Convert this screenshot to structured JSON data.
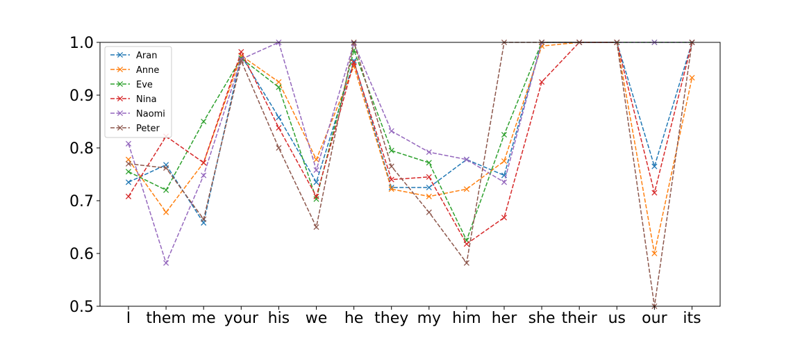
{
  "chart_data": {
    "type": "line",
    "title": "",
    "xlabel": "",
    "ylabel": "",
    "categories": [
      "I",
      "them",
      "me",
      "your",
      "his",
      "we",
      "he",
      "they",
      "my",
      "him",
      "her",
      "she",
      "their",
      "us",
      "our",
      "its"
    ],
    "ylim": [
      0.5,
      1.0
    ],
    "yticks": [
      "0.5",
      "0.6",
      "0.7",
      "0.8",
      "0.9",
      "1.0"
    ],
    "grid": false,
    "legend_position": "top-left",
    "marker": "x",
    "line_style": "dashed",
    "series": [
      {
        "name": "Aran",
        "color": "#1f77b4",
        "values": [
          0.735,
          0.768,
          0.658,
          0.975,
          0.858,
          0.735,
          0.965,
          0.725,
          0.725,
          0.778,
          0.748,
          1.0,
          1.0,
          1.0,
          0.765,
          1.0
        ]
      },
      {
        "name": "Anne",
        "color": "#ff7f0e",
        "values": [
          0.778,
          0.678,
          0.772,
          0.975,
          0.925,
          0.778,
          0.955,
          0.722,
          0.708,
          0.722,
          0.775,
          0.993,
          1.0,
          1.0,
          0.6,
          0.933
        ]
      },
      {
        "name": "Eve",
        "color": "#2ca02c",
        "values": [
          0.755,
          0.72,
          0.85,
          0.97,
          0.915,
          0.703,
          0.985,
          0.795,
          0.772,
          0.625,
          0.825,
          1.0,
          1.0,
          1.0,
          1.0,
          1.0
        ]
      },
      {
        "name": "Nina",
        "color": "#d62728",
        "values": [
          0.708,
          0.822,
          0.772,
          0.982,
          0.838,
          0.708,
          0.962,
          0.74,
          0.745,
          0.618,
          0.668,
          0.925,
          1.0,
          1.0,
          0.715,
          1.0
        ]
      },
      {
        "name": "Naomi",
        "color": "#9467bd",
        "values": [
          0.808,
          0.582,
          0.748,
          0.968,
          1.0,
          0.758,
          0.998,
          0.832,
          0.792,
          0.778,
          0.735,
          1.0,
          1.0,
          1.0,
          1.0,
          1.0
        ]
      },
      {
        "name": "Peter",
        "color": "#8c564b",
        "values": [
          0.77,
          0.762,
          0.665,
          0.965,
          0.8,
          0.65,
          1.0,
          0.765,
          0.678,
          0.582,
          1.0,
          1.0,
          1.0,
          1.0,
          0.5,
          1.0
        ]
      }
    ]
  }
}
